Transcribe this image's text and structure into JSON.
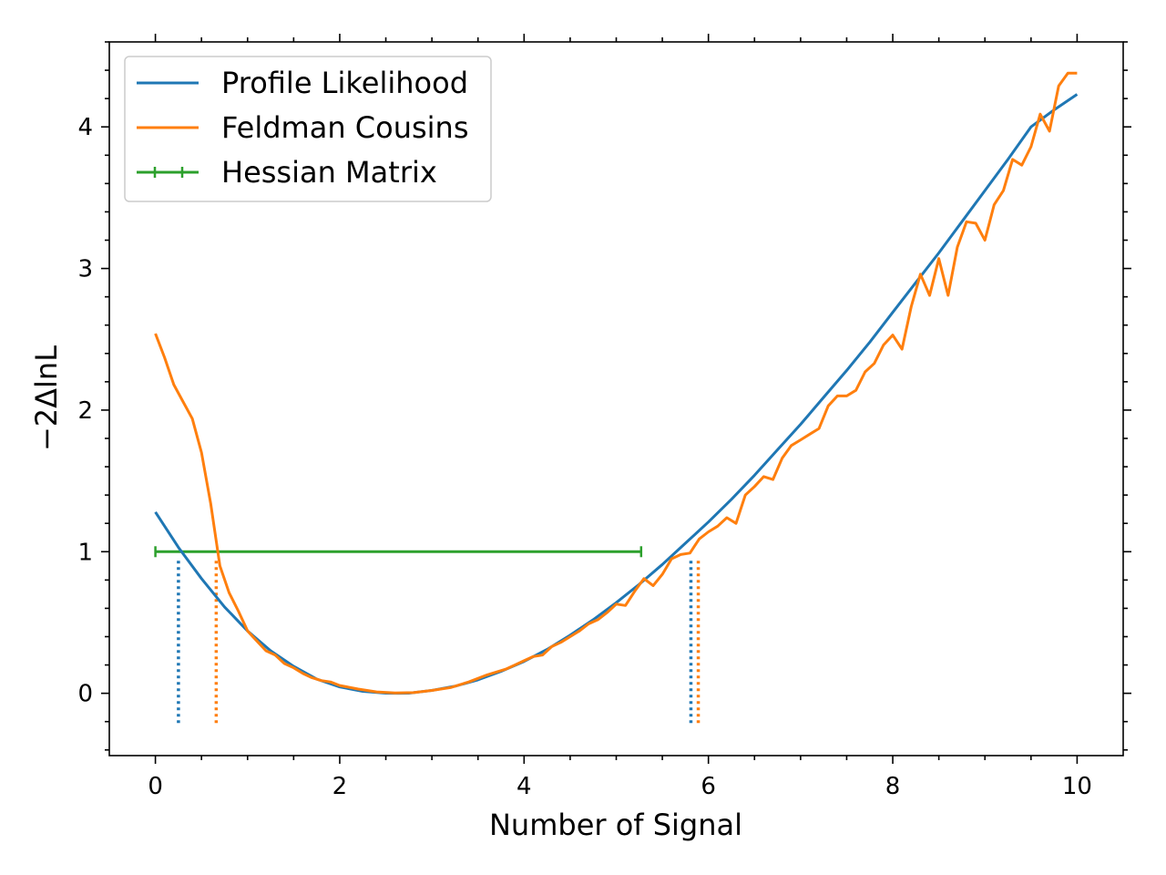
{
  "chart_data": {
    "type": "line",
    "xlabel": "Number of Signal",
    "ylabel": "−2ΔlnL",
    "xlim": [
      -0.5,
      10.5
    ],
    "ylim": [
      -0.44,
      4.6
    ],
    "xticks": [
      0,
      2,
      4,
      6,
      8,
      10
    ],
    "yticks": [
      0,
      1,
      2,
      3,
      4
    ],
    "legend_position": "top-left",
    "grid": false,
    "series": [
      {
        "name": "Profile Likelihood",
        "color": "#1f77b4",
        "x": [
          0,
          0.25,
          0.5,
          0.75,
          1,
          1.25,
          1.5,
          1.75,
          2,
          2.25,
          2.5,
          2.64,
          2.75,
          3,
          3.25,
          3.5,
          3.75,
          4,
          4.25,
          4.5,
          4.75,
          5,
          5.25,
          5.5,
          5.75,
          6,
          6.25,
          6.5,
          6.75,
          7,
          7.25,
          7.5,
          7.75,
          8,
          8.25,
          8.5,
          8.75,
          9,
          9.25,
          9.5,
          9.75,
          10
        ],
        "y": [
          1.28,
          1.03,
          0.81,
          0.61,
          0.44,
          0.3,
          0.19,
          0.1,
          0.045,
          0.014,
          0.001,
          0.0,
          0.001,
          0.02,
          0.05,
          0.095,
          0.155,
          0.225,
          0.31,
          0.41,
          0.52,
          0.64,
          0.77,
          0.91,
          1.06,
          1.21,
          1.37,
          1.54,
          1.72,
          1.9,
          2.09,
          2.28,
          2.48,
          2.69,
          2.9,
          3.11,
          3.33,
          3.55,
          3.77,
          4.0,
          4.12,
          4.23
        ]
      },
      {
        "name": "Feldman Cousins",
        "color": "#ff7f0e",
        "x": [
          0,
          0.1,
          0.2,
          0.3,
          0.4,
          0.5,
          0.6,
          0.7,
          0.8,
          0.9,
          1.0,
          1.1,
          1.2,
          1.3,
          1.4,
          1.5,
          1.6,
          1.7,
          1.8,
          1.9,
          2.0,
          2.2,
          2.4,
          2.6,
          2.8,
          3.0,
          3.2,
          3.4,
          3.6,
          3.8,
          3.9,
          4.0,
          4.1,
          4.2,
          4.3,
          4.4,
          4.5,
          4.6,
          4.7,
          4.8,
          4.9,
          5.0,
          5.1,
          5.2,
          5.3,
          5.4,
          5.5,
          5.6,
          5.7,
          5.8,
          5.9,
          6.0,
          6.1,
          6.2,
          6.3,
          6.4,
          6.5,
          6.6,
          6.7,
          6.8,
          6.9,
          7.0,
          7.1,
          7.2,
          7.3,
          7.4,
          7.5,
          7.6,
          7.7,
          7.8,
          7.9,
          8.0,
          8.1,
          8.2,
          8.3,
          8.4,
          8.5,
          8.6,
          8.7,
          8.8,
          8.9,
          9.0,
          9.1,
          9.2,
          9.3,
          9.4,
          9.5,
          9.6,
          9.7,
          9.8,
          9.9,
          10.0
        ],
        "y": [
          2.54,
          2.37,
          2.18,
          2.06,
          1.94,
          1.7,
          1.34,
          0.9,
          0.71,
          0.58,
          0.44,
          0.37,
          0.3,
          0.27,
          0.21,
          0.18,
          0.14,
          0.11,
          0.09,
          0.08,
          0.055,
          0.03,
          0.01,
          0.002,
          0.005,
          0.02,
          0.04,
          0.08,
          0.13,
          0.17,
          0.2,
          0.23,
          0.26,
          0.27,
          0.33,
          0.36,
          0.4,
          0.44,
          0.49,
          0.52,
          0.57,
          0.63,
          0.62,
          0.72,
          0.81,
          0.76,
          0.84,
          0.95,
          0.98,
          0.99,
          1.09,
          1.14,
          1.18,
          1.24,
          1.2,
          1.4,
          1.46,
          1.53,
          1.51,
          1.66,
          1.75,
          1.79,
          1.83,
          1.87,
          2.03,
          2.1,
          2.1,
          2.14,
          2.27,
          2.33,
          2.46,
          2.53,
          2.43,
          2.73,
          2.96,
          2.81,
          3.07,
          2.81,
          3.15,
          3.33,
          3.32,
          3.2,
          3.45,
          3.55,
          3.77,
          3.73,
          3.86,
          4.09,
          3.97,
          4.29,
          4.38,
          4.38
        ]
      }
    ],
    "hessian_interval": {
      "name": "Hessian Matrix",
      "color": "#2ca02c",
      "x_low": 0.0,
      "x_high": 5.27,
      "y": 1.0
    },
    "interval_markers": [
      {
        "series": "Profile Likelihood",
        "color": "#1f77b4",
        "x": [
          0.25,
          5.81
        ],
        "y_from": -0.21,
        "y_to": 1.0
      },
      {
        "series": "Feldman Cousins",
        "color": "#ff7f0e",
        "x": [
          0.66,
          5.89
        ],
        "y_from": -0.21,
        "y_to": 1.0
      }
    ]
  }
}
